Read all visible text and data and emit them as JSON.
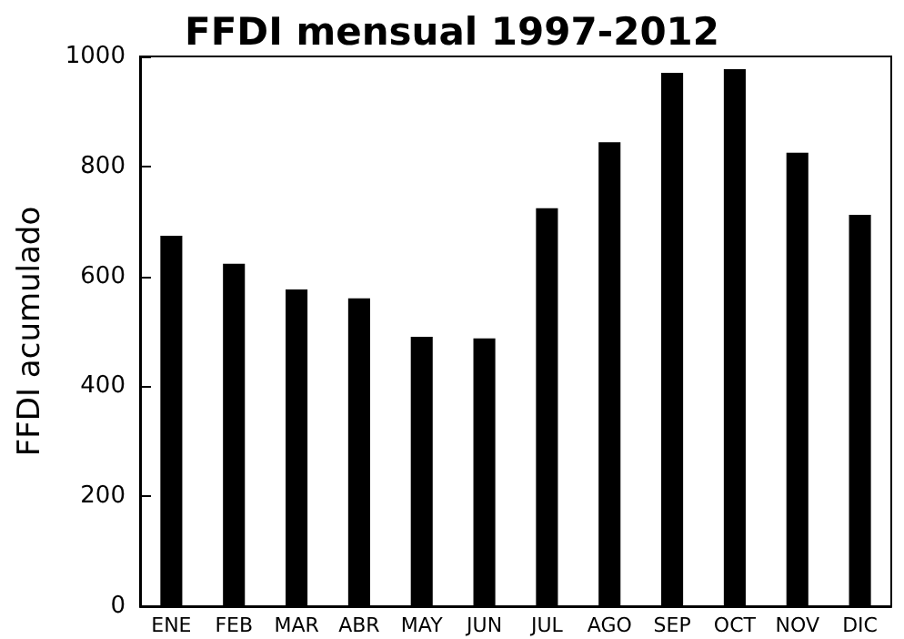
{
  "chart_data": {
    "type": "bar",
    "title": "FFDI mensual 1997-2012",
    "ylabel": "FFDI acumulado",
    "categories": [
      "ENE",
      "FEB",
      "MAR",
      "ABR",
      "MAY",
      "JUN",
      "JUL",
      "AGO",
      "SEP",
      "OCT",
      "NOV",
      "DIC"
    ],
    "values": [
      674,
      623,
      576,
      560,
      490,
      487,
      724,
      844,
      970,
      977,
      825,
      712
    ],
    "color": "#000000",
    "ylim": [
      0,
      1000
    ],
    "yticks": [
      0,
      200,
      400,
      600,
      800,
      1000
    ],
    "grid": false
  }
}
